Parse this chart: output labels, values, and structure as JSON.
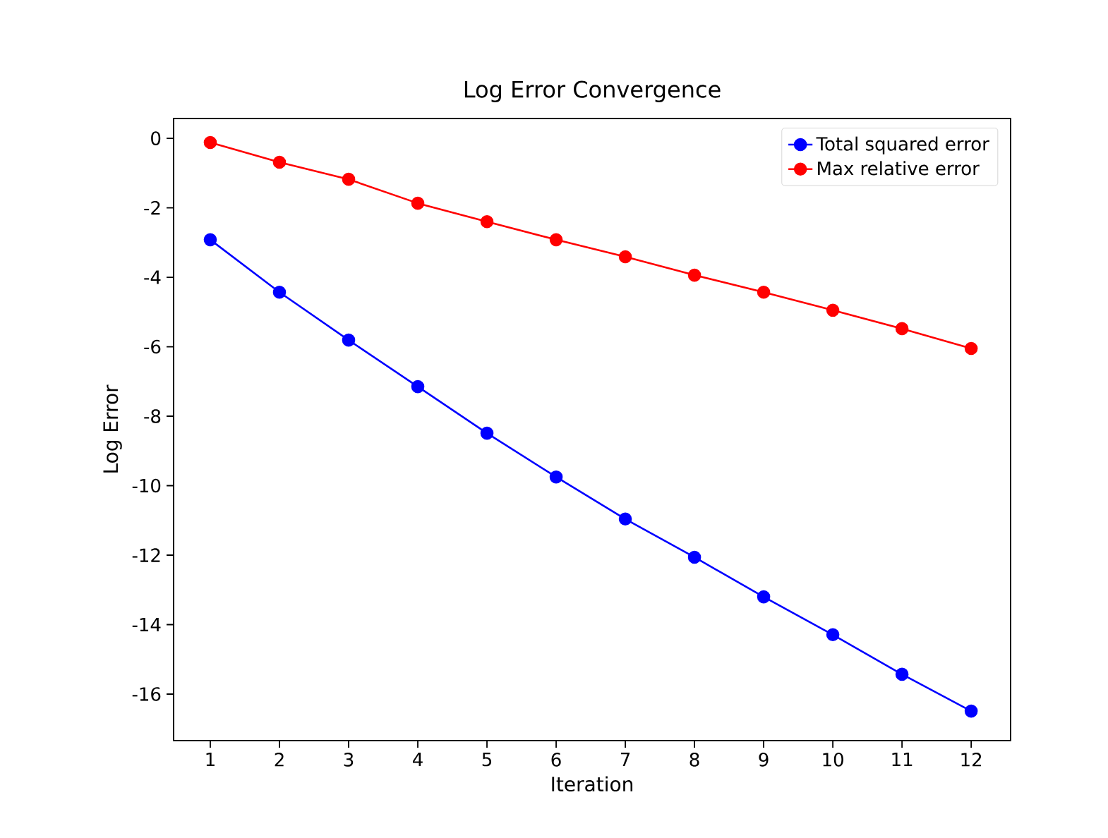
{
  "chart_data": {
    "type": "line",
    "title": "Log Error Convergence",
    "xlabel": "Iteration",
    "ylabel": "Log Error",
    "x": [
      1,
      2,
      3,
      4,
      5,
      6,
      7,
      8,
      9,
      10,
      11,
      12
    ],
    "series": [
      {
        "name": "Total squared error",
        "color": "#0000ff",
        "values": [
          -2.92,
          -4.43,
          -5.81,
          -7.15,
          -8.49,
          -9.75,
          -10.96,
          -12.06,
          -13.2,
          -14.29,
          -15.43,
          -16.49
        ]
      },
      {
        "name": "Max relative error",
        "color": "#ff0000",
        "values": [
          -0.12,
          -0.69,
          -1.18,
          -1.87,
          -2.4,
          -2.92,
          -3.41,
          -3.94,
          -4.43,
          -4.95,
          -5.48,
          -6.05
        ]
      }
    ],
    "xlim": [
      0.47,
      12.57
    ],
    "ylim": [
      -17.34,
      0.57
    ],
    "xticks": [
      1,
      2,
      3,
      4,
      5,
      6,
      7,
      8,
      9,
      10,
      11,
      12
    ],
    "yticks": [
      -16,
      -14,
      -12,
      -10,
      -8,
      -6,
      -4,
      -2,
      0
    ],
    "grid": false,
    "legend": "top right",
    "marker": "circle",
    "line_style": "solid"
  }
}
